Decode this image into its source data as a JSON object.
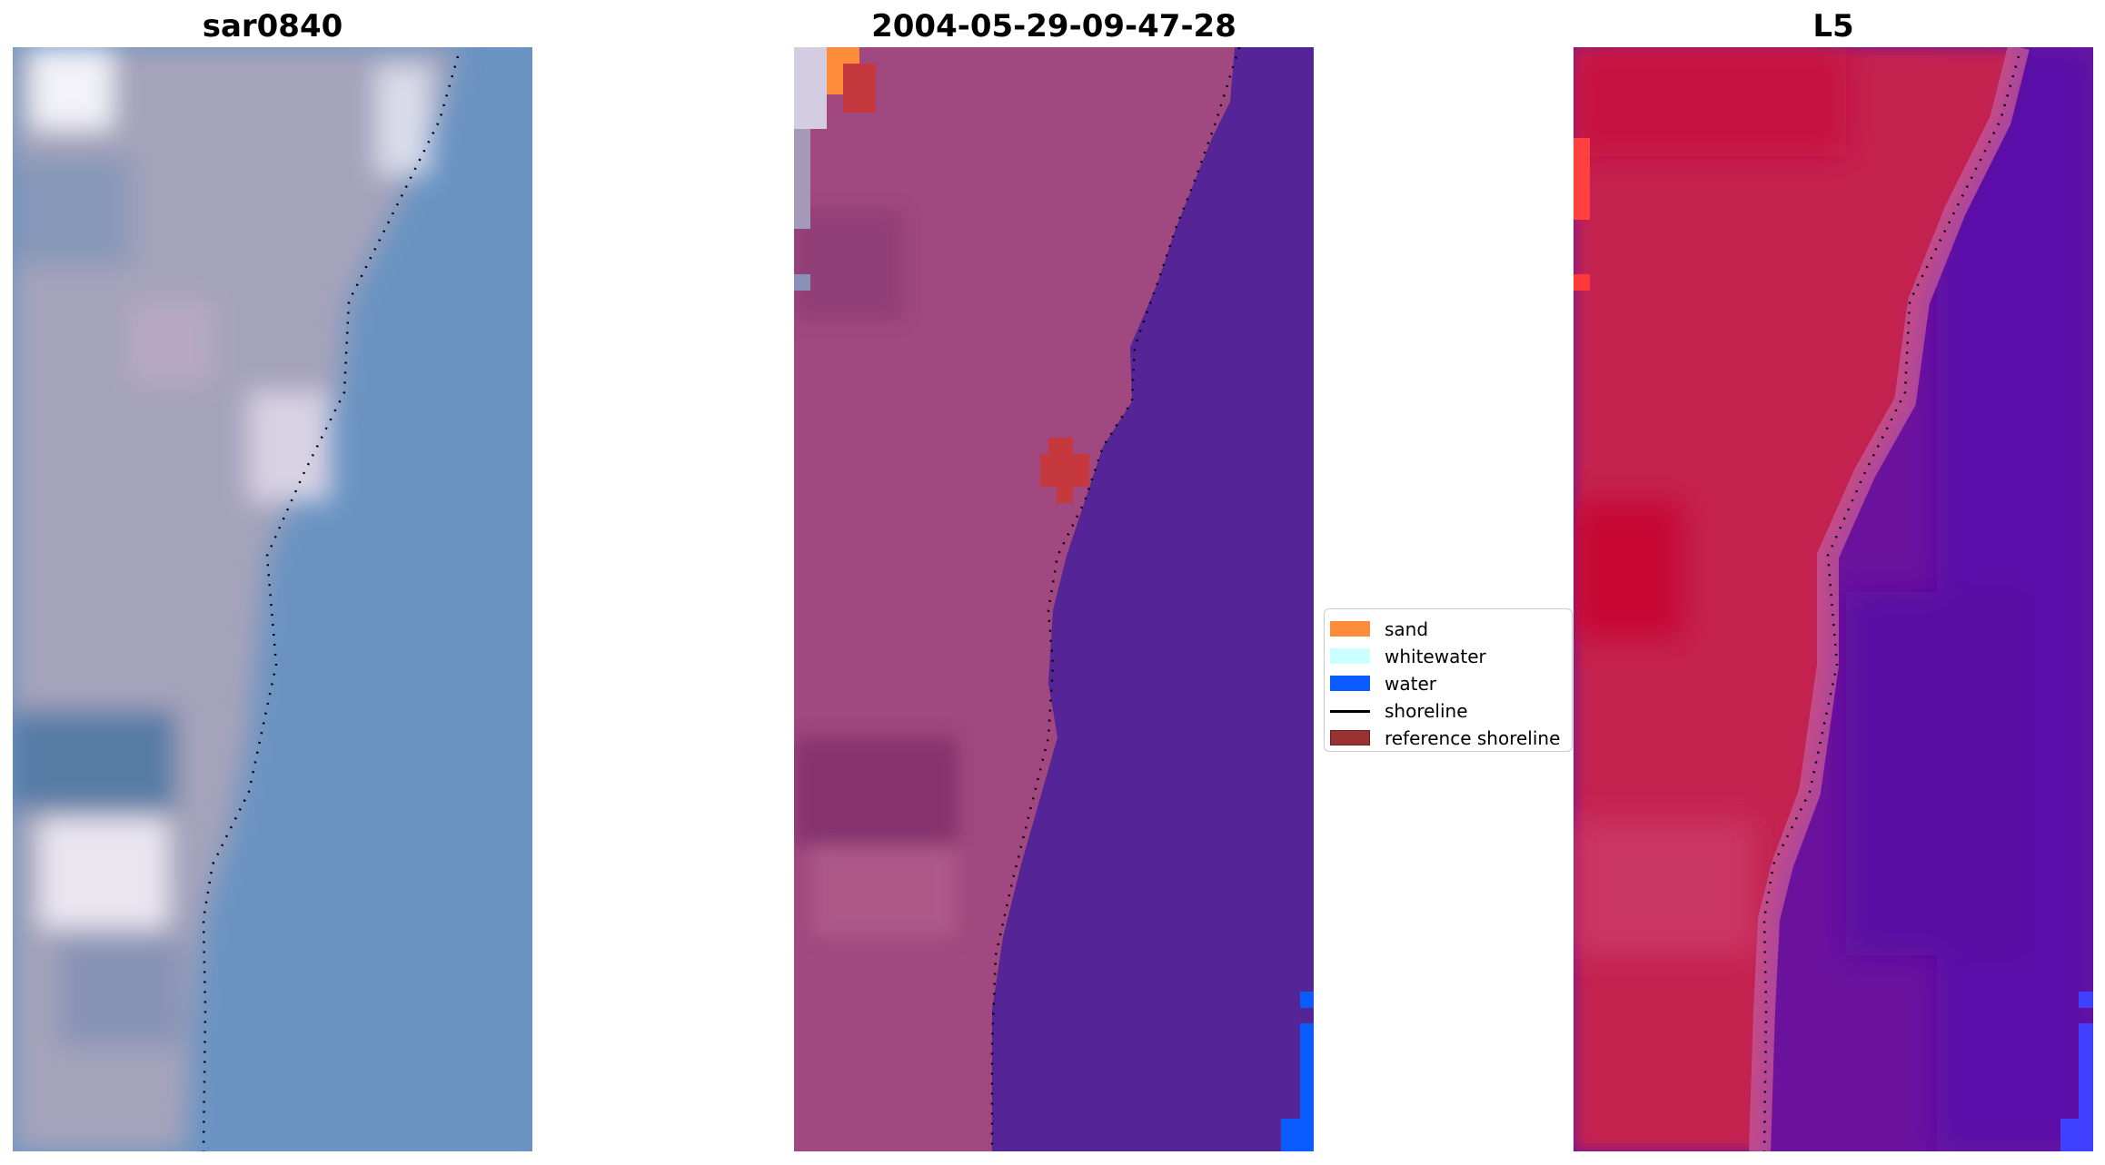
{
  "panels": [
    {
      "title": "sar0840"
    },
    {
      "title": "2004-05-29-09-47-28"
    },
    {
      "title": "L5"
    }
  ],
  "legend": {
    "items": [
      {
        "label": "sand",
        "color": "#ff8c3a",
        "kind": "patch"
      },
      {
        "label": "whitewater",
        "color": "#ccffff",
        "kind": "patch"
      },
      {
        "label": "water",
        "color": "#0a5cff",
        "kind": "patch"
      },
      {
        "label": "shoreline",
        "color": "#000000",
        "kind": "line"
      },
      {
        "label": "reference shoreline",
        "color": "#993333",
        "kind": "patch"
      }
    ]
  },
  "colors": {
    "rgb_land": "#a39fb8",
    "rgb_water": "#6a93c2",
    "classified_land": "#a0487f",
    "classified_water": "#552597",
    "index_land": "#c4214f",
    "index_water": "#6a129e"
  }
}
